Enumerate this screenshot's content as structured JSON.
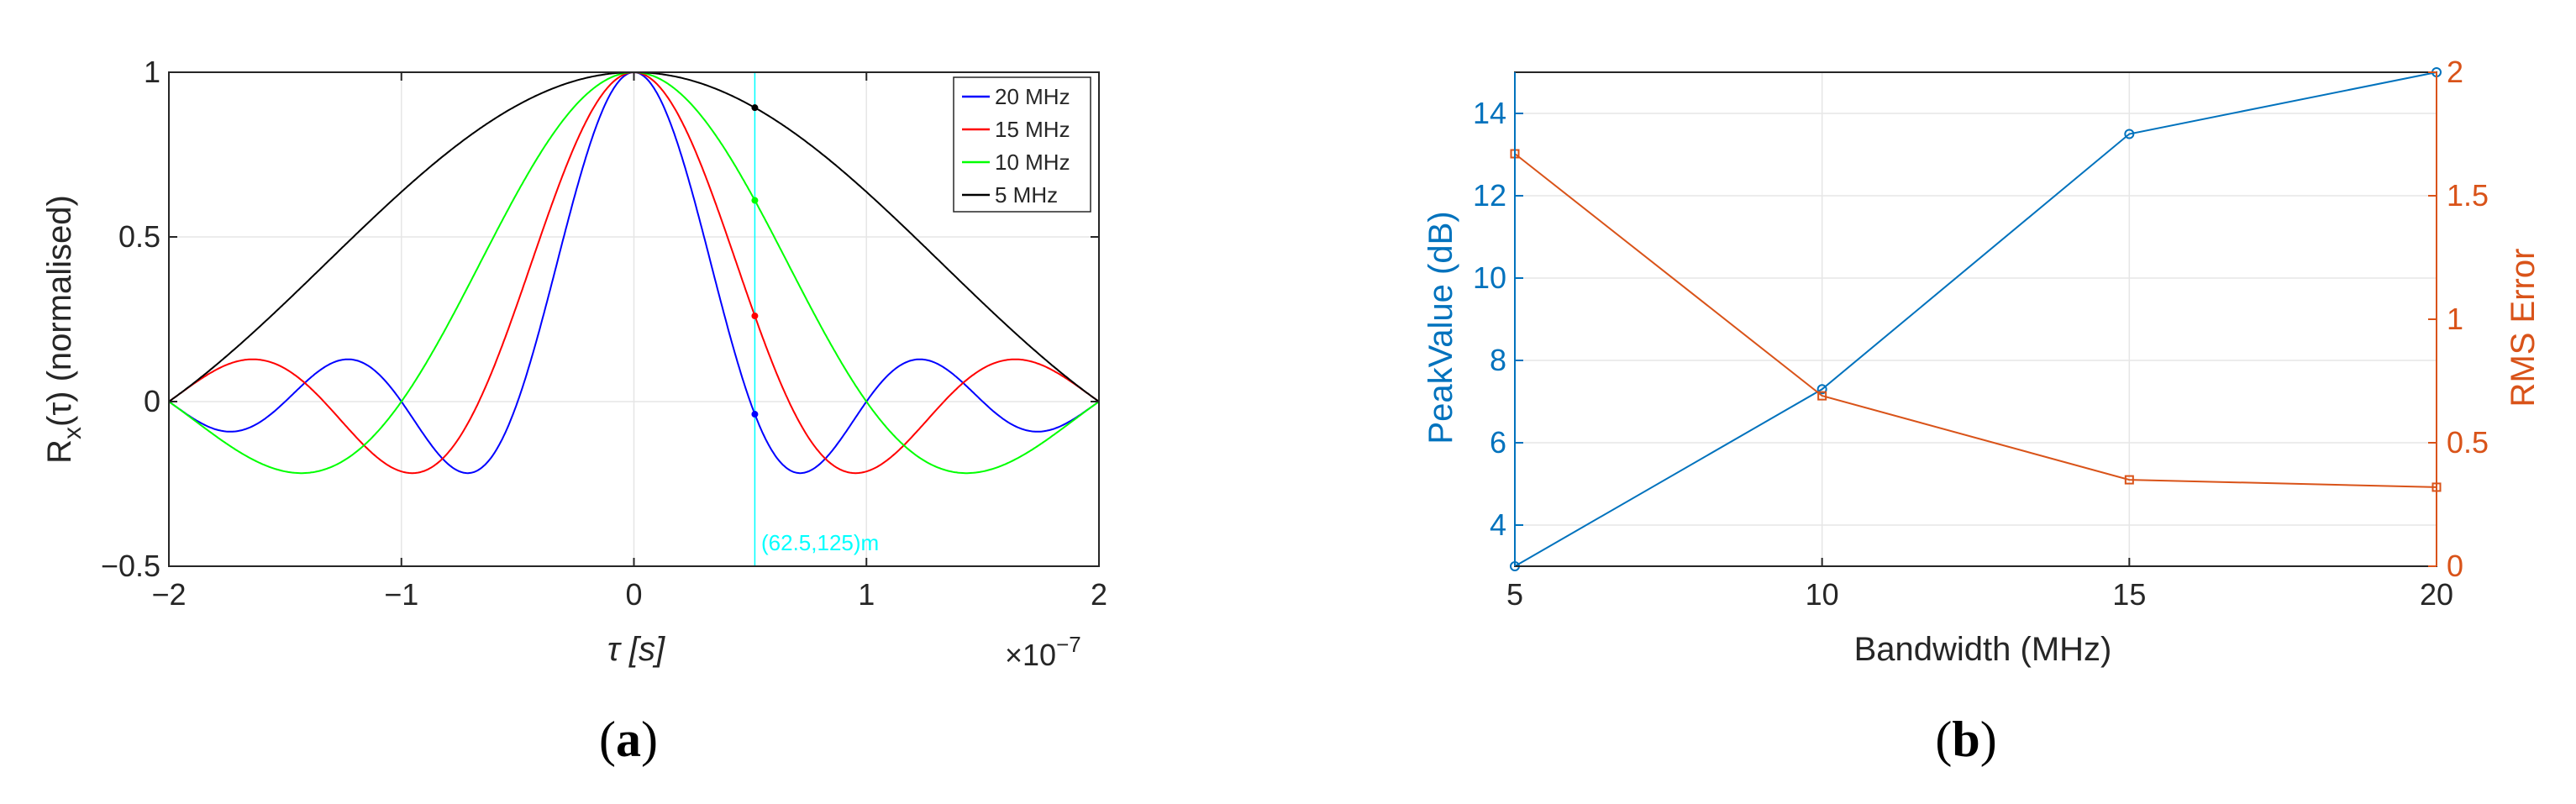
{
  "chart_data": [
    {
      "panel_label": "a",
      "type": "line",
      "title": "",
      "xlabel": "τ [s]",
      "ylabel": "R",
      "ylabel_sub": "x",
      "ylabel_tail": "(τ) (normalised)",
      "x_exponent_label": "×10",
      "x_exponent": "−7",
      "xlim": [
        -2e-07,
        2e-07
      ],
      "ylim": [
        -0.5,
        1
      ],
      "xticks": [
        -2e-07,
        -1e-07,
        0,
        1e-07,
        2e-07
      ],
      "xtick_labels": [
        "−2",
        "−1",
        "0",
        "1",
        "2"
      ],
      "yticks": [
        -0.5,
        0,
        0.5,
        1
      ],
      "ytick_labels": [
        "−0.5",
        "0",
        "0.5",
        "1"
      ],
      "grid": true,
      "legend_position": "top-right",
      "series": [
        {
          "name": "20 MHz",
          "bandwidth_hz": 20000000,
          "color": "#0000ff"
        },
        {
          "name": "15 MHz",
          "bandwidth_hz": 15000000,
          "color": "#ff0000"
        },
        {
          "name": "10 MHz",
          "bandwidth_hz": 10000000,
          "color": "#00ff00"
        },
        {
          "name": "5 MHz",
          "bandwidth_hz": 5000000,
          "color": "#000000"
        }
      ],
      "marker_tau": 5.2e-08,
      "marker_color": "#00ffff",
      "annotation": "(62.5,125)m"
    },
    {
      "panel_label": "b",
      "type": "line",
      "title": "",
      "xlabel": "Bandwidth (MHz)",
      "ylabel_left": "PeakValue (dB)",
      "ylabel_right": "RMS Error",
      "x": [
        5,
        10,
        15,
        20
      ],
      "xlim": [
        5,
        20
      ],
      "xticks": [
        5,
        10,
        15,
        20
      ],
      "ylim_left": [
        3,
        15
      ],
      "yticks_left": [
        4,
        6,
        8,
        10,
        12,
        14
      ],
      "ylim_right": [
        0,
        2
      ],
      "yticks_right": [
        0,
        0.5,
        1,
        1.5,
        2
      ],
      "grid": true,
      "series": [
        {
          "name": "PeakValue (dB)",
          "axis": "left",
          "values": [
            3.0,
            7.3,
            13.5,
            15.0
          ],
          "color": "#0072bd"
        },
        {
          "name": "RMS Error",
          "axis": "right",
          "values": [
            1.67,
            0.69,
            0.35,
            0.32
          ],
          "color": "#d95319"
        }
      ]
    }
  ]
}
